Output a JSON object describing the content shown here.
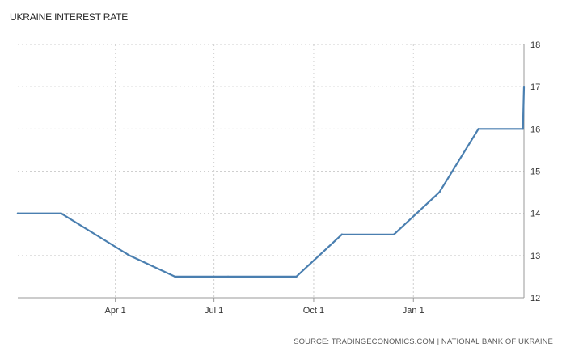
{
  "chart_data": {
    "type": "line",
    "title": "UKRAINE INTEREST RATE",
    "source": "SOURCE: TRADINGECONOMICS.COM | NATIONAL BANK OF UKRAINE",
    "xlabel": "",
    "ylabel": "",
    "x_ticks": [
      "Apr 1",
      "Jul 1",
      "Oct 1",
      "Jan 1"
    ],
    "y_ticks": [
      12,
      13,
      14,
      15,
      16,
      17,
      18
    ],
    "ylim": [
      12,
      18
    ],
    "y_axis_side": "right",
    "grid": true,
    "line_color": "#4a7fb0",
    "points": [
      {
        "x": "2017-01-01",
        "y": 14.0
      },
      {
        "x": "2017-02-10",
        "y": 14.0
      },
      {
        "x": "2017-04-14",
        "y": 13.0
      },
      {
        "x": "2017-05-26",
        "y": 12.5
      },
      {
        "x": "2017-07-14",
        "y": 12.5
      },
      {
        "x": "2017-09-15",
        "y": 12.5
      },
      {
        "x": "2017-10-27",
        "y": 13.5
      },
      {
        "x": "2017-12-14",
        "y": 13.5
      },
      {
        "x": "2018-01-25",
        "y": 14.5
      },
      {
        "x": "2018-03-02",
        "y": 16.0
      },
      {
        "x": "2018-04-12",
        "y": 16.0
      },
      {
        "x": "2018-04-13",
        "y": 17.0
      }
    ]
  }
}
